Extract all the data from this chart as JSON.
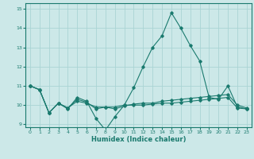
{
  "xlabel": "Humidex (Indice chaleur)",
  "ylabel": "",
  "background_color": "#cce8e8",
  "grid_color": "#aad4d4",
  "line_color": "#1a7a6e",
  "xlim": [
    -0.5,
    23.5
  ],
  "ylim": [
    8.85,
    15.3
  ],
  "yticks": [
    9,
    10,
    11,
    12,
    13,
    14,
    15
  ],
  "xticks": [
    0,
    1,
    2,
    3,
    4,
    5,
    6,
    7,
    8,
    9,
    10,
    11,
    12,
    13,
    14,
    15,
    16,
    17,
    18,
    19,
    20,
    21,
    22,
    23
  ],
  "series": [
    [
      11.0,
      10.8,
      9.6,
      10.1,
      9.8,
      10.4,
      10.2,
      9.3,
      8.7,
      9.4,
      10.0,
      10.9,
      12.0,
      13.0,
      13.6,
      14.8,
      14.0,
      13.1,
      12.3,
      10.4,
      10.3,
      11.0,
      9.9,
      9.8
    ],
    [
      11.0,
      10.8,
      9.6,
      10.1,
      9.85,
      10.3,
      10.15,
      9.8,
      9.9,
      9.8,
      9.95,
      10.05,
      10.1,
      10.1,
      10.2,
      10.25,
      10.3,
      10.35,
      10.4,
      10.45,
      10.5,
      10.55,
      10.0,
      9.85
    ],
    [
      11.0,
      10.8,
      9.6,
      10.1,
      9.85,
      10.2,
      10.1,
      9.9,
      9.9,
      9.9,
      10.0,
      10.0,
      10.0,
      10.05,
      10.1,
      10.1,
      10.15,
      10.2,
      10.25,
      10.3,
      10.35,
      10.4,
      9.85,
      9.8
    ]
  ]
}
